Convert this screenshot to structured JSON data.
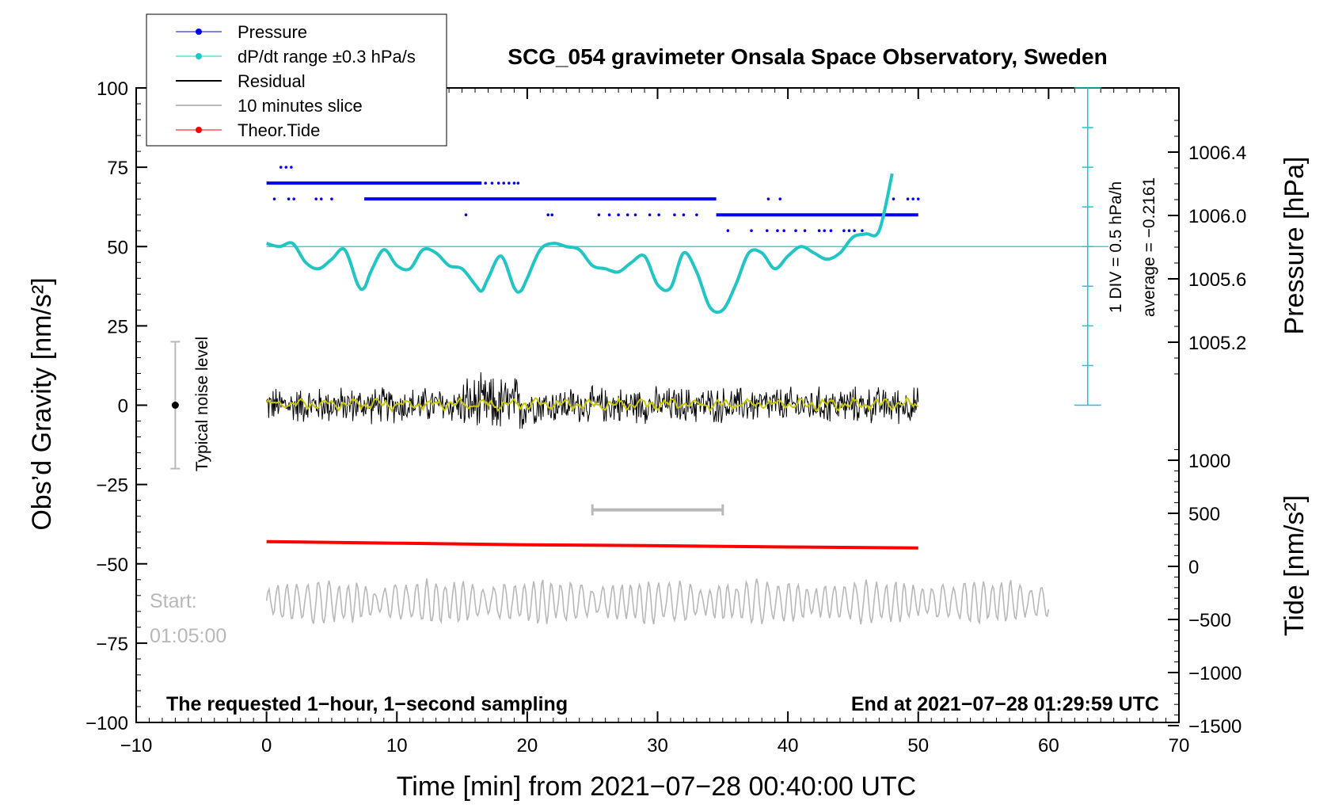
{
  "chart_data": {
    "type": "line",
    "title": "SCG_054 gravimeter Onsala Space Observatory, Sweden",
    "xlabel": "Time [min] from 2021−07−28 00:40:00 UTC",
    "ylabel": "Obs’d Gravity [nm/s²]",
    "ylabel_right_top": "Pressure [hPa]",
    "ylabel_right_bottom": "Tide [nm/s²]",
    "xlim": [
      -10,
      70
    ],
    "ylim": [
      -100,
      100
    ],
    "x_ticks": [
      -10,
      0,
      10,
      20,
      30,
      40,
      50,
      60,
      70
    ],
    "x_tick_labels": [
      "−10",
      "0",
      "10",
      "20",
      "30",
      "40",
      "50",
      "60",
      "70"
    ],
    "y_ticks": [
      100,
      75,
      50,
      25,
      0,
      -25,
      -50,
      -75,
      -100
    ],
    "y_tick_labels": [
      "100",
      "75",
      "50",
      "25",
      "0",
      "−25",
      "−50",
      "−75",
      "−100"
    ],
    "pressure_ticks": [
      1006.4,
      1006.0,
      1005.6,
      1005.2
    ],
    "pressure_tick_labels": [
      "1006.4",
      "1006.0",
      "1005.6",
      "1005.2"
    ],
    "tide_ticks": [
      1000,
      500,
      0,
      -500,
      -1000,
      -1500
    ],
    "tide_tick_labels": [
      "1000",
      "500",
      "0",
      "−500",
      "−1000",
      "−1500"
    ],
    "legend": [
      {
        "label": "Pressure",
        "color": "#0000ee",
        "marker": "dot"
      },
      {
        "label": "dP/dt range ±0.3 hPa/s",
        "color": "#22c4c4",
        "marker": "dot"
      },
      {
        "label": "Residual",
        "color": "#000000",
        "marker": "none"
      },
      {
        "label": "10 minutes slice",
        "color": "#b8b8b8",
        "marker": "none"
      },
      {
        "label": "Theor.Tide",
        "color": "#ff0000",
        "marker": "dot"
      }
    ],
    "series": [
      {
        "name": "dP/dt",
        "color": "#22c4c4",
        "x": [
          0,
          1,
          2,
          3,
          4,
          5,
          6,
          7,
          7.5,
          8,
          9,
          10,
          11,
          12,
          13,
          14,
          15,
          16,
          16.5,
          17,
          18,
          19,
          19.5,
          20,
          21,
          22,
          23,
          24,
          25,
          26,
          27,
          28,
          29,
          30,
          31,
          32,
          33,
          34,
          35,
          36,
          37,
          38,
          39,
          40,
          41,
          42,
          43,
          44,
          45,
          46,
          47,
          48
        ],
        "y": [
          51,
          50,
          51,
          45,
          43,
          46,
          49,
          38,
          37,
          42,
          49,
          44,
          43,
          49,
          48,
          44,
          43,
          38,
          36,
          40,
          47,
          37,
          36,
          40,
          49,
          51,
          50,
          49,
          44,
          43,
          42,
          45,
          47,
          38,
          37,
          48,
          42,
          31,
          30,
          38,
          48,
          48,
          43,
          47,
          50,
          48,
          46,
          48,
          53,
          54,
          55,
          73
        ]
      },
      {
        "name": "Theor.Tide",
        "color": "#ff0000",
        "x": [
          0,
          10,
          20,
          30,
          40,
          50
        ],
        "y": [
          -43,
          -43.5,
          -44,
          -44.3,
          -44.7,
          -45
        ]
      }
    ],
    "pressure_points": {
      "x_start": 0,
      "x_end": 50,
      "levels": [
        70,
        65,
        60
      ]
    },
    "reference_line_y": 50,
    "dpdt_scale": {
      "label": "1 DIV = 0.5 hPa/h",
      "average_label": "average = −0.2161"
    },
    "slice_marker": {
      "x_start": 25,
      "x_end": 35,
      "y": -33
    },
    "noise_level": {
      "label": "Typical noise level",
      "range": [
        -20,
        20
      ],
      "x": -7
    },
    "annotations": {
      "bottom_left": "The requested 1−hour, 1−second sampling",
      "bottom_right": "End at 2021−07−28 01:29:59 UTC",
      "start_label": "Start:",
      "start_time": "01:05:00"
    }
  },
  "colors": {
    "pressure": "#0000ee",
    "dpdt": "#22c4c4",
    "residual": "#000000",
    "residual_smooth": "#c8c800",
    "slice": "#b8b8b8",
    "tide": "#ff0000"
  }
}
